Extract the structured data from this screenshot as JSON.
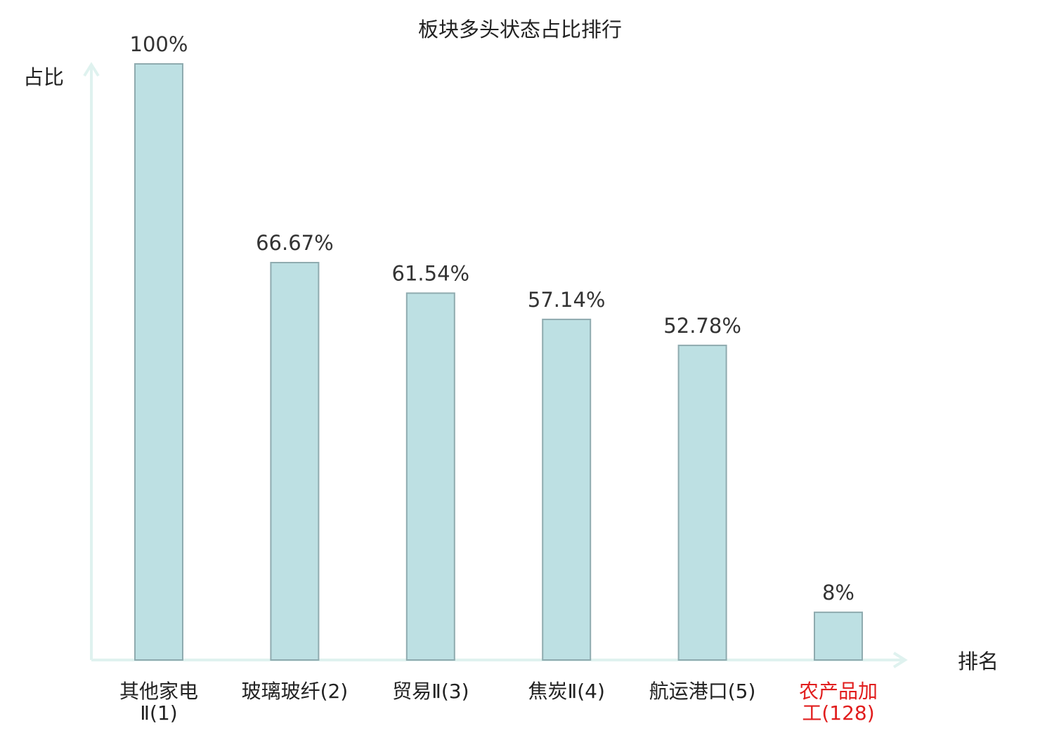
{
  "chart_data": {
    "type": "bar",
    "title": "板块多头状态占比排行",
    "ylabel": "占比",
    "xlabel": "排名",
    "ylim": [
      0,
      100
    ],
    "categories": [
      {
        "name": "其他家电Ⅱ",
        "rank": "(1)",
        "lines": [
          "其他家电",
          "Ⅱ(1)"
        ],
        "highlight": false
      },
      {
        "name": "玻璃玻纤",
        "rank": "(2)",
        "lines": [
          "玻璃玻纤(2)"
        ],
        "highlight": false
      },
      {
        "name": "贸易Ⅱ",
        "rank": "(3)",
        "lines": [
          "贸易Ⅱ(3)"
        ],
        "highlight": false
      },
      {
        "name": "焦炭Ⅱ",
        "rank": "(4)",
        "lines": [
          "焦炭Ⅱ(4)"
        ],
        "highlight": false
      },
      {
        "name": "航运港口",
        "rank": "(5)",
        "lines": [
          "航运港口(5)"
        ],
        "highlight": false
      },
      {
        "name": "农产品加工",
        "rank": "(128)",
        "lines": [
          "农产品加",
          "工(128)"
        ],
        "highlight": true
      }
    ],
    "values": [
      100,
      66.67,
      61.54,
      57.14,
      52.78,
      8
    ],
    "value_labels": [
      "100%",
      "66.67%",
      "61.54%",
      "57.14%",
      "52.78%",
      "8%"
    ],
    "grid": false,
    "legend": "none"
  },
  "colors": {
    "bar_fill": "#bde0e3",
    "bar_stroke": "#8fabaf",
    "axis": "#dff2ef",
    "text": "#333333",
    "label_text": "#222222",
    "highlight_text": "#e11d1d"
  }
}
